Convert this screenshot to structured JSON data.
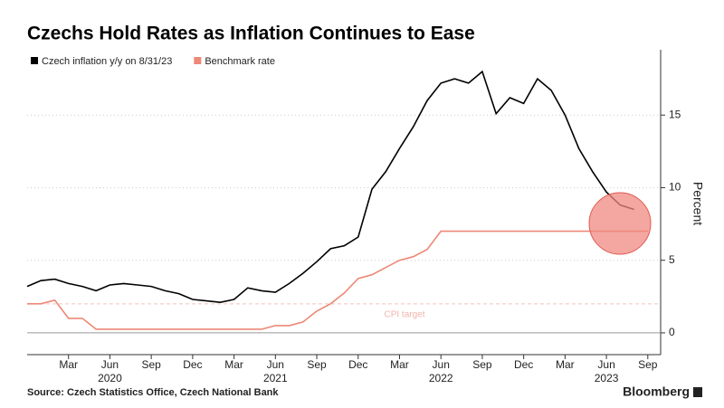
{
  "chart_data": {
    "type": "line",
    "title": "Czechs Hold Rates as Inflation Continues to Ease",
    "source": "Source: Czech Statistics Office, Czech National Bank",
    "brand": "Bloomberg",
    "ylabel": "Percent",
    "x": [
      "2019-12",
      "2020-01",
      "2020-02",
      "2020-03",
      "2020-04",
      "2020-05",
      "2020-06",
      "2020-07",
      "2020-08",
      "2020-09",
      "2020-10",
      "2020-11",
      "2020-12",
      "2021-01",
      "2021-02",
      "2021-03",
      "2021-04",
      "2021-05",
      "2021-06",
      "2021-07",
      "2021-08",
      "2021-09",
      "2021-10",
      "2021-11",
      "2021-12",
      "2022-01",
      "2022-02",
      "2022-03",
      "2022-04",
      "2022-05",
      "2022-06",
      "2022-07",
      "2022-08",
      "2022-09",
      "2022-10",
      "2022-11",
      "2022-12",
      "2023-01",
      "2023-02",
      "2023-03",
      "2023-04",
      "2023-05",
      "2023-06",
      "2023-07",
      "2023-08",
      "2023-09"
    ],
    "series": [
      {
        "name": "Czech inflation y/y on 8/31/23",
        "color": "#000000",
        "values": [
          3.2,
          3.6,
          3.7,
          3.4,
          3.2,
          2.9,
          3.3,
          3.4,
          3.3,
          3.2,
          2.9,
          2.7,
          2.3,
          2.2,
          2.1,
          2.3,
          3.1,
          2.9,
          2.8,
          3.4,
          4.1,
          4.9,
          5.8,
          6.0,
          6.6,
          9.9,
          11.1,
          12.7,
          14.2,
          16.0,
          17.2,
          17.5,
          17.2,
          18.0,
          15.1,
          16.2,
          15.8,
          17.5,
          16.7,
          15.0,
          12.7,
          11.1,
          9.7,
          8.8,
          8.5,
          null
        ]
      },
      {
        "name": "Benchmark rate",
        "color": "#ee8877",
        "values": [
          2.0,
          2.0,
          2.25,
          1.0,
          1.0,
          0.25,
          0.25,
          0.25,
          0.25,
          0.25,
          0.25,
          0.25,
          0.25,
          0.25,
          0.25,
          0.25,
          0.25,
          0.25,
          0.5,
          0.5,
          0.75,
          1.5,
          2.0,
          2.75,
          3.75,
          4.0,
          4.5,
          5.0,
          5.25,
          5.75,
          7.0,
          7.0,
          7.0,
          7.0,
          7.0,
          7.0,
          7.0,
          7.0,
          7.0,
          7.0,
          7.0,
          7.0,
          7.0,
          7.0,
          7.0,
          7.0
        ]
      }
    ],
    "cpi_target": {
      "label": "CPI target",
      "value": 2
    },
    "ylim": [
      -1.5,
      19.5
    ],
    "yticks": [
      0,
      5,
      10,
      15
    ],
    "xticks": [
      {
        "value": "2020-03",
        "label": "Mar"
      },
      {
        "value": "2020-06",
        "label": "Jun"
      },
      {
        "value": "2020-09",
        "label": "Sep"
      },
      {
        "value": "2020-12",
        "label": "Dec"
      },
      {
        "value": "2021-03",
        "label": "Mar"
      },
      {
        "value": "2021-06",
        "label": "Jun"
      },
      {
        "value": "2021-09",
        "label": "Sep"
      },
      {
        "value": "2021-12",
        "label": "Dec"
      },
      {
        "value": "2022-03",
        "label": "Mar"
      },
      {
        "value": "2022-06",
        "label": "Jun"
      },
      {
        "value": "2022-09",
        "label": "Sep"
      },
      {
        "value": "2022-12",
        "label": "Dec"
      },
      {
        "value": "2023-03",
        "label": "Mar"
      },
      {
        "value": "2023-06",
        "label": "Jun"
      },
      {
        "value": "2023-09",
        "label": "Sep"
      }
    ],
    "xyears": [
      {
        "value": "2020-06",
        "label": "2020"
      },
      {
        "value": "2021-06",
        "label": "2021"
      },
      {
        "value": "2022-06",
        "label": "2022"
      },
      {
        "value": "2023-06",
        "label": "2023"
      }
    ],
    "grid": true
  }
}
